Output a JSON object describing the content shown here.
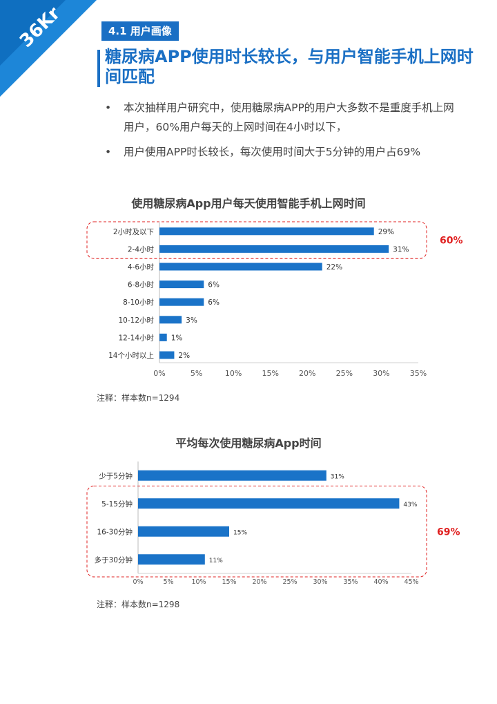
{
  "logo": {
    "text": "36Kr"
  },
  "section_tag": "4.1 用户画像",
  "headline": "糖尿病APP使用时长较长，与用户智能手机上网时间匹配",
  "bullets": [
    "本次抽样用户研究中，使用糖尿病APP的用户大多数不是重度手机上网用户，60%用户每天的上网时间在4小时以下，",
    "用户使用APP时长较长，每次使用时间大于5分钟的用户占69%"
  ],
  "bullet_symbol": "•",
  "colors": {
    "accent": "#1a6fc4",
    "bar": "#1a73c8",
    "highlight": "#e02020"
  },
  "charts": [
    {
      "title": "使用糖尿病App用户每天使用智能手机上网时间",
      "note": "注释：样本数n=1294",
      "highlight_label": "60%"
    },
    {
      "title": "平均每次使用糖尿病App时间",
      "note": "注释：样本数n=1298",
      "highlight_label": "69%"
    }
  ],
  "chart_data": [
    {
      "type": "bar",
      "orientation": "horizontal",
      "title": "使用糖尿病App用户每天使用智能手机上网时间",
      "categories": [
        "2小时及以下",
        "2-4小时",
        "4-6小时",
        "6-8小时",
        "8-10小时",
        "10-12小时",
        "12-14小时",
        "14个小时以上"
      ],
      "values": [
        29,
        31,
        22,
        6,
        6,
        3,
        1,
        2
      ],
      "value_labels": [
        "29%",
        "31%",
        "22%",
        "6%",
        "6%",
        "3%",
        "1%",
        "2%"
      ],
      "xlim": [
        0,
        35
      ],
      "xticks": [
        "0%",
        "5%",
        "10%",
        "15%",
        "20%",
        "25%",
        "30%",
        "35%"
      ],
      "highlight": {
        "categories": [
          "2小时及以下",
          "2-4小时"
        ],
        "label": "60%"
      }
    },
    {
      "type": "bar",
      "orientation": "horizontal",
      "title": "平均每次使用糖尿病App时间",
      "categories": [
        "少于5分钟",
        "5-15分钟",
        "16-30分钟",
        "多于30分钟"
      ],
      "values": [
        31,
        43,
        15,
        11
      ],
      "value_labels": [
        "31%",
        "43%",
        "15%",
        "11%"
      ],
      "xlim": [
        0,
        45
      ],
      "xticks": [
        "0%",
        "5%",
        "10%",
        "15%",
        "20%",
        "25%",
        "30%",
        "35%",
        "40%",
        "45%"
      ],
      "highlight": {
        "categories": [
          "5-15分钟",
          "16-30分钟",
          "多于30分钟"
        ],
        "label": "69%"
      }
    }
  ]
}
